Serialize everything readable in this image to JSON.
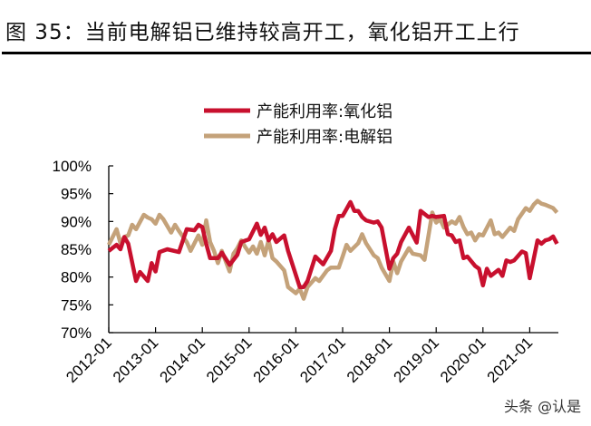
{
  "title": "图 35：当前电解铝已维持较高开工，氧化铝开工上行",
  "watermark": "头条 @认是",
  "chart_data": {
    "type": "line",
    "title": "",
    "xlabel": "",
    "ylabel": "",
    "ylim": [
      70,
      100
    ],
    "yticks": [
      "100%",
      "95%",
      "90%",
      "85%",
      "80%",
      "75%",
      "70%"
    ],
    "xticks": [
      "2012-01",
      "2013-01",
      "2014-01",
      "2015-01",
      "2016-01",
      "2017-01",
      "2018-01",
      "2019-01",
      "2020-01",
      "2021-01"
    ],
    "grid": false,
    "legend": "top-center",
    "series": [
      {
        "name": "产能利用率:氧化铝",
        "color": "#c8102e",
        "points": [
          [
            "2012-01",
            84.7
          ],
          [
            "2012-03",
            85.8
          ],
          [
            "2012-04",
            85.0
          ],
          [
            "2012-05",
            87.2
          ],
          [
            "2012-06",
            86.0
          ],
          [
            "2012-08",
            79.3
          ],
          [
            "2012-09",
            80.9
          ],
          [
            "2012-11",
            79.3
          ],
          [
            "2012-12",
            82.5
          ],
          [
            "2013-01",
            81.0
          ],
          [
            "2013-02",
            84.5
          ],
          [
            "2013-04",
            85.0
          ],
          [
            "2013-07",
            84.5
          ],
          [
            "2013-09",
            88.6
          ],
          [
            "2013-11",
            88.4
          ],
          [
            "2013-12",
            89.4
          ],
          [
            "2014-01",
            89.0
          ],
          [
            "2014-02",
            86.0
          ],
          [
            "2014-03",
            83.4
          ],
          [
            "2014-05",
            83.4
          ],
          [
            "2014-06",
            84.4
          ],
          [
            "2014-08",
            82.2
          ],
          [
            "2014-10",
            84.0
          ],
          [
            "2014-11",
            86.3
          ],
          [
            "2015-01",
            86.8
          ],
          [
            "2015-03",
            89.6
          ],
          [
            "2015-04",
            87.6
          ],
          [
            "2015-05",
            88.9
          ],
          [
            "2015-06",
            86.6
          ],
          [
            "2015-07",
            87.7
          ],
          [
            "2015-08",
            86.3
          ],
          [
            "2015-10",
            87.5
          ],
          [
            "2015-11",
            84.7
          ],
          [
            "2016-02",
            78.2
          ],
          [
            "2016-03",
            78.2
          ],
          [
            "2016-04",
            79.3
          ],
          [
            "2016-06",
            83.7
          ],
          [
            "2016-08",
            82.3
          ],
          [
            "2016-10",
            84.7
          ],
          [
            "2016-11",
            88.6
          ],
          [
            "2016-12",
            91.0
          ],
          [
            "2017-01",
            91.0
          ],
          [
            "2017-03",
            93.5
          ],
          [
            "2017-04",
            91.9
          ],
          [
            "2017-05",
            91.9
          ],
          [
            "2017-06",
            90.8
          ],
          [
            "2017-07",
            90.2
          ],
          [
            "2017-09",
            89.8
          ],
          [
            "2017-10",
            90.0
          ],
          [
            "2017-11",
            88.9
          ],
          [
            "2018-01",
            81.5
          ],
          [
            "2018-02",
            83.4
          ],
          [
            "2018-03",
            84.2
          ],
          [
            "2018-04",
            86.3
          ],
          [
            "2018-06",
            88.9
          ],
          [
            "2018-08",
            86.2
          ],
          [
            "2018-09",
            91.9
          ],
          [
            "2018-11",
            90.8
          ],
          [
            "2018-12",
            91.0
          ],
          [
            "2019-01",
            90.8
          ],
          [
            "2019-03",
            91.0
          ],
          [
            "2019-04",
            87.7
          ],
          [
            "2019-05",
            87.5
          ],
          [
            "2019-06",
            86.3
          ],
          [
            "2019-07",
            86.6
          ],
          [
            "2019-08",
            83.4
          ],
          [
            "2019-09",
            83.7
          ],
          [
            "2019-11",
            82.0
          ],
          [
            "2019-12",
            81.5
          ],
          [
            "2020-01",
            78.5
          ],
          [
            "2020-02",
            81.5
          ],
          [
            "2020-03",
            80.2
          ],
          [
            "2020-05",
            81.3
          ],
          [
            "2020-06",
            80.2
          ],
          [
            "2020-07",
            83.0
          ],
          [
            "2020-08",
            82.7
          ],
          [
            "2020-09",
            83.0
          ],
          [
            "2020-11",
            84.6
          ],
          [
            "2020-12",
            84.3
          ],
          [
            "2021-01",
            79.8
          ],
          [
            "2021-03",
            86.6
          ],
          [
            "2021-04",
            86.0
          ],
          [
            "2021-05",
            86.6
          ],
          [
            "2021-06",
            86.8
          ],
          [
            "2021-07",
            87.3
          ],
          [
            "2021-08",
            86.0
          ]
        ]
      },
      {
        "name": "产能利用率:电解铝",
        "color": "#c4a27a",
        "points": [
          [
            "2012-01",
            85.8
          ],
          [
            "2012-03",
            88.6
          ],
          [
            "2012-04",
            86.1
          ],
          [
            "2012-05",
            87.2
          ],
          [
            "2012-06",
            87.5
          ],
          [
            "2012-07",
            89.4
          ],
          [
            "2012-08",
            88.6
          ],
          [
            "2012-10",
            91.2
          ],
          [
            "2012-11",
            90.7
          ],
          [
            "2012-12",
            90.4
          ],
          [
            "2013-01",
            89.6
          ],
          [
            "2013-02",
            91.2
          ],
          [
            "2013-03",
            90.4
          ],
          [
            "2013-05",
            88.0
          ],
          [
            "2013-06",
            89.4
          ],
          [
            "2013-07",
            88.3
          ],
          [
            "2013-09",
            86.3
          ],
          [
            "2013-10",
            84.7
          ],
          [
            "2013-12",
            87.5
          ],
          [
            "2014-01",
            85.8
          ],
          [
            "2014-02",
            90.2
          ],
          [
            "2014-03",
            86.3
          ],
          [
            "2014-04",
            84.7
          ],
          [
            "2014-05",
            82.5
          ],
          [
            "2014-06",
            84.7
          ],
          [
            "2014-08",
            81.0
          ],
          [
            "2014-09",
            84.2
          ],
          [
            "2014-10",
            85.2
          ],
          [
            "2014-11",
            86.6
          ],
          [
            "2014-12",
            85.4
          ],
          [
            "2015-01",
            84.4
          ],
          [
            "2015-02",
            85.5
          ],
          [
            "2015-03",
            84.2
          ],
          [
            "2015-04",
            86.3
          ],
          [
            "2015-05",
            83.9
          ],
          [
            "2015-06",
            86.6
          ],
          [
            "2015-07",
            83.4
          ],
          [
            "2015-08",
            82.8
          ],
          [
            "2015-10",
            81.2
          ],
          [
            "2015-11",
            78.2
          ],
          [
            "2016-01",
            77.1
          ],
          [
            "2016-02",
            77.9
          ],
          [
            "2016-03",
            76.1
          ],
          [
            "2016-04",
            78.2
          ],
          [
            "2016-06",
            79.8
          ],
          [
            "2016-07",
            79.3
          ],
          [
            "2016-09",
            81.2
          ],
          [
            "2016-10",
            81.7
          ],
          [
            "2016-12",
            81.7
          ],
          [
            "2017-01",
            83.7
          ],
          [
            "2017-02",
            85.8
          ],
          [
            "2017-03",
            84.7
          ],
          [
            "2017-05",
            86.1
          ],
          [
            "2017-06",
            87.7
          ],
          [
            "2017-07",
            86.1
          ],
          [
            "2017-09",
            83.9
          ],
          [
            "2017-10",
            83.4
          ],
          [
            "2017-11",
            81.7
          ],
          [
            "2018-01",
            79.3
          ],
          [
            "2018-02",
            82.8
          ],
          [
            "2018-03",
            80.7
          ],
          [
            "2018-04",
            82.8
          ],
          [
            "2018-06",
            85.2
          ],
          [
            "2018-07",
            84.2
          ],
          [
            "2018-09",
            83.9
          ],
          [
            "2018-10",
            83.1
          ],
          [
            "2018-12",
            91.6
          ],
          [
            "2019-01",
            89.8
          ],
          [
            "2019-02",
            90.4
          ],
          [
            "2019-03",
            88.9
          ],
          [
            "2019-05",
            90.0
          ],
          [
            "2019-06",
            89.6
          ],
          [
            "2019-07",
            90.8
          ],
          [
            "2019-08",
            89.0
          ],
          [
            "2019-09",
            87.7
          ],
          [
            "2019-10",
            88.0
          ],
          [
            "2019-11",
            86.6
          ],
          [
            "2019-12",
            87.7
          ],
          [
            "2020-01",
            87.5
          ],
          [
            "2020-03",
            90.2
          ],
          [
            "2020-04",
            87.7
          ],
          [
            "2020-05",
            88.0
          ],
          [
            "2020-06",
            87.2
          ],
          [
            "2020-08",
            88.9
          ],
          [
            "2020-09",
            88.3
          ],
          [
            "2020-10",
            90.4
          ],
          [
            "2020-12",
            92.4
          ],
          [
            "2021-01",
            91.9
          ],
          [
            "2021-02",
            93.0
          ],
          [
            "2021-03",
            93.7
          ],
          [
            "2021-04",
            93.2
          ],
          [
            "2021-05",
            93.0
          ],
          [
            "2021-07",
            92.4
          ],
          [
            "2021-08",
            91.6
          ]
        ]
      }
    ]
  }
}
